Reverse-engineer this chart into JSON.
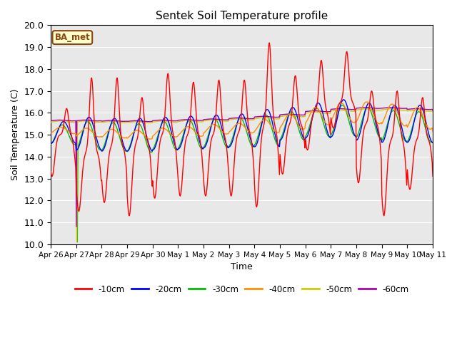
{
  "title": "Sentek Soil Temperature profile",
  "xlabel": "Time",
  "ylabel": "Soil Temperature (C)",
  "ylim": [
    10.0,
    20.0
  ],
  "yticks": [
    10.0,
    11.0,
    12.0,
    13.0,
    14.0,
    15.0,
    16.0,
    17.0,
    18.0,
    19.0,
    20.0
  ],
  "bg_color": "#e8e8e8",
  "fig_bg": "#ffffff",
  "annotation_text": "BA_met",
  "annotation_bg": "#ffffcc",
  "annotation_border": "#8b4513",
  "colors": {
    "-10cm": "#ff0000",
    "-20cm": "#0000ff",
    "-30cm": "#00bb00",
    "-40cm": "#ff8c00",
    "-50cm": "#cccc00",
    "-60cm": "#aa00aa"
  },
  "xtick_labels": [
    "Apr 26",
    "Apr 27",
    "Apr 28",
    "Apr 29",
    "Apr 30",
    "May 1",
    "May 2",
    "May 3",
    "May 4",
    "May 5",
    "May 6",
    "May 7",
    "May 8",
    "May 9",
    "May 10",
    "May 11"
  ],
  "xtick_positions": [
    0,
    1,
    2,
    3,
    4,
    5,
    6,
    7,
    8,
    9,
    10,
    11,
    12,
    13,
    14,
    15
  ]
}
